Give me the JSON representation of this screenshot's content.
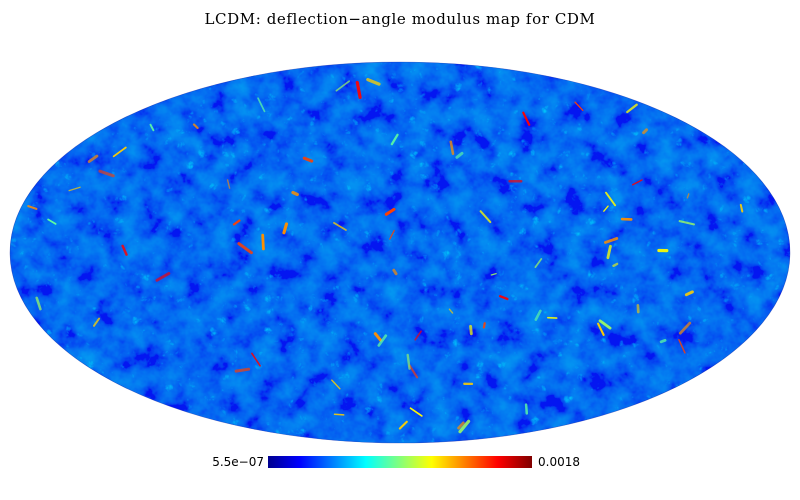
{
  "title": "LCDM: deflection−angle modulus map for CDM",
  "projection": "mollweide",
  "map_colormap": [
    "#00008f",
    "#0000ff",
    "#00ffff",
    "#ffff00",
    "#ff0000",
    "#800000"
  ],
  "colorbar": {
    "min_label": "5.5e−07",
    "max_label": "0.0018"
  }
}
